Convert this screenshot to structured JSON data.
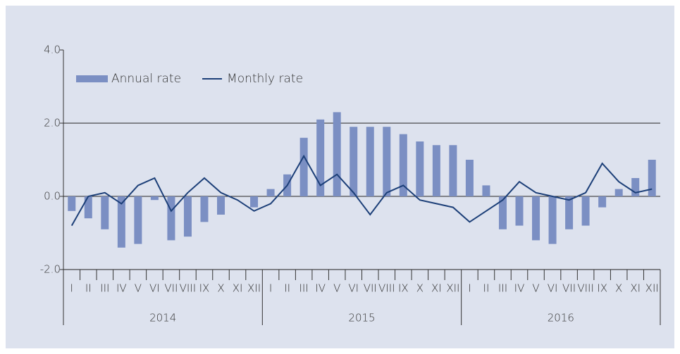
{
  "chart_data": {
    "type": "bar_line",
    "categories": [
      "I",
      "II",
      "III",
      "IV",
      "V",
      "VI",
      "VII",
      "VIII",
      "IX",
      "X",
      "XI",
      "XII",
      "I",
      "II",
      "III",
      "IV",
      "V",
      "VI",
      "VII",
      "VIII",
      "IX",
      "X",
      "XI",
      "XII",
      "I",
      "II",
      "III",
      "IV",
      "V",
      "VI",
      "VII",
      "VIII",
      "IX",
      "X",
      "XI",
      "XII"
    ],
    "years": [
      "2014",
      "2015",
      "2016"
    ],
    "series": [
      {
        "name": "Annual rate",
        "type": "bar",
        "color": "#7b8fc3",
        "values": [
          -0.4,
          -0.6,
          -0.9,
          -1.4,
          -1.3,
          -0.1,
          -1.2,
          -1.1,
          -0.7,
          -0.5,
          0.0,
          -0.3,
          0.2,
          0.6,
          1.6,
          2.1,
          2.3,
          1.9,
          1.9,
          1.9,
          1.7,
          1.5,
          1.4,
          1.4,
          1.0,
          0.3,
          -0.9,
          -0.8,
          -1.2,
          -1.3,
          -0.9,
          -0.8,
          -0.3,
          0.2,
          0.5,
          1.0
        ]
      },
      {
        "name": "Monthly rate",
        "type": "line",
        "color": "#1c3f78",
        "values": [
          -0.8,
          0.0,
          0.1,
          -0.2,
          0.3,
          0.5,
          -0.4,
          0.1,
          0.5,
          0.1,
          -0.1,
          -0.4,
          -0.2,
          0.3,
          1.1,
          0.3,
          0.6,
          0.1,
          -0.5,
          0.1,
          0.3,
          -0.1,
          -0.2,
          -0.3,
          -0.7,
          -0.4,
          -0.1,
          0.4,
          0.1,
          0.0,
          -0.1,
          0.1,
          0.9,
          0.4,
          0.1,
          0.2
        ]
      }
    ],
    "ylim": [
      -2,
      4
    ],
    "yticks": [
      {
        "value": -2,
        "label": "-2.0"
      },
      {
        "value": 0,
        "label": "0.0"
      },
      {
        "value": 2,
        "label": "2.0"
      },
      {
        "value": 4,
        "label": "4.0"
      }
    ],
    "grid": true,
    "legend": "upper left"
  }
}
